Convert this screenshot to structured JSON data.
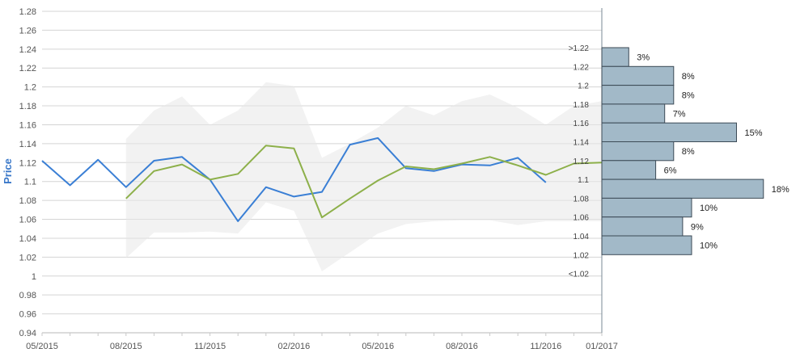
{
  "chart_data": {
    "type": "line",
    "ylabel": "Price",
    "ylim": [
      0.94,
      1.28
    ],
    "yticks": [
      "0.94",
      "0.96",
      "0.98",
      "1",
      "1.02",
      "1.04",
      "1.06",
      "1.08",
      "1.1",
      "1.12",
      "1.14",
      "1.16",
      "1.18",
      "1.2",
      "1.22",
      "1.24",
      "1.26",
      "1.28"
    ],
    "xticks": [
      "05/2015",
      "08/2015",
      "11/2015",
      "02/2016",
      "05/2016",
      "08/2016",
      "11/2016",
      "01/2017"
    ],
    "grid": true,
    "series": [
      {
        "color": "#3a7fd5",
        "x": [
          "2015-05",
          "2015-06",
          "2015-07",
          "2015-08",
          "2015-09",
          "2015-10",
          "2015-11",
          "2015-12",
          "2016-01",
          "2016-02",
          "2016-03",
          "2016-04",
          "2016-05",
          "2016-06",
          "2016-07",
          "2016-08",
          "2016-09",
          "2016-10",
          "2016-11"
        ],
        "values": [
          1.122,
          1.096,
          1.123,
          1.094,
          1.122,
          1.126,
          1.102,
          1.058,
          1.094,
          1.084,
          1.089,
          1.139,
          1.146,
          1.114,
          1.111,
          1.118,
          1.117,
          1.125,
          1.099
        ]
      },
      {
        "color": "#8db04a",
        "x": [
          "2015-08",
          "2015-09",
          "2015-10",
          "2015-11",
          "2015-12",
          "2016-01",
          "2016-02",
          "2016-03",
          "2016-04",
          "2016-05",
          "2016-06",
          "2016-07",
          "2016-08",
          "2016-09",
          "2016-10",
          "2016-11",
          "2016-12",
          "2017-01"
        ],
        "values": [
          1.082,
          1.111,
          1.118,
          1.102,
          1.108,
          1.138,
          1.135,
          1.062,
          1.082,
          1.101,
          1.116,
          1.113,
          1.119,
          1.126,
          1.117,
          1.107,
          1.119,
          1.12
        ]
      }
    ],
    "band": {
      "color": "#e8e8e8",
      "x": [
        "2015-08",
        "2015-09",
        "2015-10",
        "2015-11",
        "2015-12",
        "2016-01",
        "2016-02",
        "2016-03",
        "2016-04",
        "2016-05",
        "2016-06",
        "2016-07",
        "2016-08",
        "2016-09",
        "2016-10",
        "2016-11",
        "2016-12",
        "2017-01"
      ],
      "upper": [
        1.145,
        1.175,
        1.19,
        1.16,
        1.175,
        1.205,
        1.201,
        1.125,
        1.14,
        1.157,
        1.18,
        1.17,
        1.185,
        1.192,
        1.178,
        1.16,
        1.18,
        1.185
      ],
      "lower": [
        1.019,
        1.046,
        1.046,
        1.047,
        1.045,
        1.078,
        1.069,
        1.005,
        1.025,
        1.045,
        1.055,
        1.058,
        1.059,
        1.059,
        1.054,
        1.058,
        1.058,
        1.058
      ]
    },
    "histogram": {
      "color": "#a2b9c8",
      "bins": [
        {
          "label": ">1.22",
          "percent": 3,
          "text": "3%"
        },
        {
          "label": "1.22",
          "percent": 8,
          "text": "8%"
        },
        {
          "label": "1.2",
          "percent": 8,
          "text": "8%"
        },
        {
          "label": "1.18",
          "percent": 7,
          "text": "7%"
        },
        {
          "label": "1.16",
          "percent": 15,
          "text": "15%"
        },
        {
          "label": "1.14",
          "percent": 8,
          "text": "8%"
        },
        {
          "label": "1.12",
          "percent": 6,
          "text": "6%"
        },
        {
          "label": "1.1",
          "percent": 18,
          "text": "18%"
        },
        {
          "label": "1.08",
          "percent": 10,
          "text": "10%"
        },
        {
          "label": "1.06",
          "percent": 9,
          "text": "9%"
        },
        {
          "label": "1.04",
          "percent": 10,
          "text": "10%"
        },
        {
          "label": "1.02",
          "percent": null,
          "text": ""
        },
        {
          "label": "<1.02",
          "percent": null,
          "text": ""
        }
      ]
    }
  }
}
